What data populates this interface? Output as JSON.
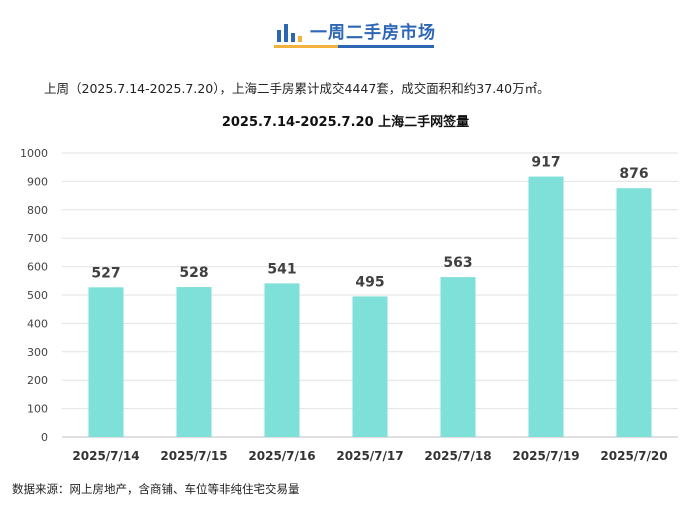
{
  "header": {
    "title": "一周二手房市场",
    "icon": "bar-chart-icon",
    "accent_colors": [
      "#2e66b6",
      "#f3b23c"
    ]
  },
  "summary_text": "上周（2025.7.14-2025.7.20），上海二手房累计成交4447套，成交面积和约37.40万㎡。",
  "source_text": "数据来源：网上房地产，含商铺、车位等非纯住宅交易量",
  "chart_data": {
    "type": "bar",
    "title": "2025.7.14-2025.7.20 上海二手网签量",
    "categories": [
      "2025/7/14",
      "2025/7/15",
      "2025/7/16",
      "2025/7/17",
      "2025/7/18",
      "2025/7/19",
      "2025/7/20"
    ],
    "values": [
      527,
      528,
      541,
      495,
      563,
      917,
      876
    ],
    "data_labels": [
      "527",
      "528",
      "541",
      "495",
      "563",
      "917",
      "876"
    ],
    "ylim": [
      0,
      1000
    ],
    "yticks": [
      "0",
      "100",
      "200",
      "300",
      "400",
      "500",
      "600",
      "700",
      "800",
      "900",
      "1000"
    ],
    "grid": true,
    "bar_color": "#7fdfd9",
    "xlabel": "",
    "ylabel": ""
  }
}
